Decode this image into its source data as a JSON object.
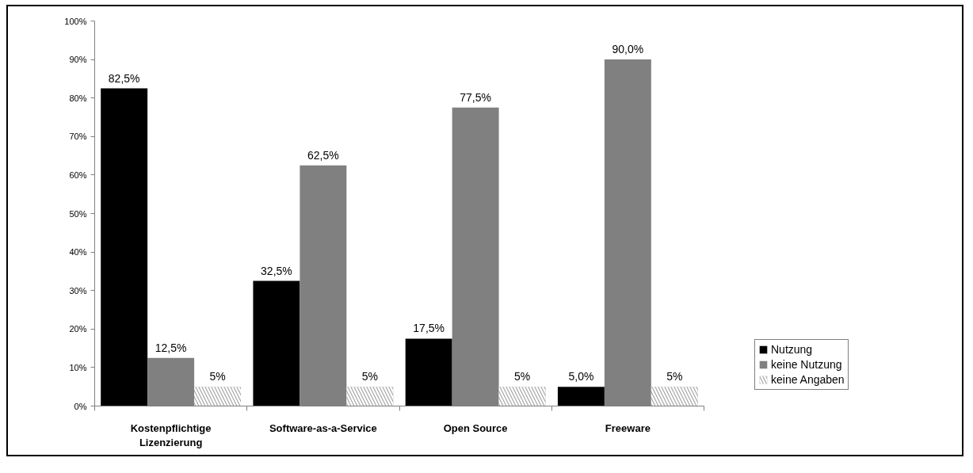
{
  "chart_data": {
    "type": "bar",
    "categories": [
      "Kostenpflichtige Lizenzierung",
      "Software-as-a-Service",
      "Open Source",
      "Freeware"
    ],
    "series": [
      {
        "name": "Nutzung",
        "color": "#000000",
        "values": [
          82.5,
          32.5,
          17.5,
          5.0
        ],
        "value_labels": [
          "82,5%",
          "32,5%",
          "17,5%",
          "5,0%"
        ]
      },
      {
        "name": "keine Nutzung",
        "color": "#808080",
        "values": [
          12.5,
          62.5,
          77.5,
          90.0
        ],
        "value_labels": [
          "12,5%",
          "62,5%",
          "77,5%",
          "90,0%"
        ]
      },
      {
        "name": "keine Angaben",
        "color": "#a0a0a0",
        "values": [
          5,
          5,
          5,
          5
        ],
        "value_labels": [
          "5%",
          "5%",
          "5%",
          "5%"
        ]
      }
    ],
    "ylim": [
      0,
      100
    ],
    "yticks": [
      {
        "value": 0,
        "label": "0%"
      },
      {
        "value": 10,
        "label": "10%"
      },
      {
        "value": 20,
        "label": "20%"
      },
      {
        "value": 30,
        "label": "30%"
      },
      {
        "value": 40,
        "label": "40%"
      },
      {
        "value": 50,
        "label": "50%"
      },
      {
        "value": 60,
        "label": "60%"
      },
      {
        "value": 70,
        "label": "70%"
      },
      {
        "value": 80,
        "label": "80%"
      },
      {
        "value": 90,
        "label": "90%"
      },
      {
        "value": 100,
        "label": "100%"
      }
    ],
    "grid": false,
    "legend": "right"
  }
}
